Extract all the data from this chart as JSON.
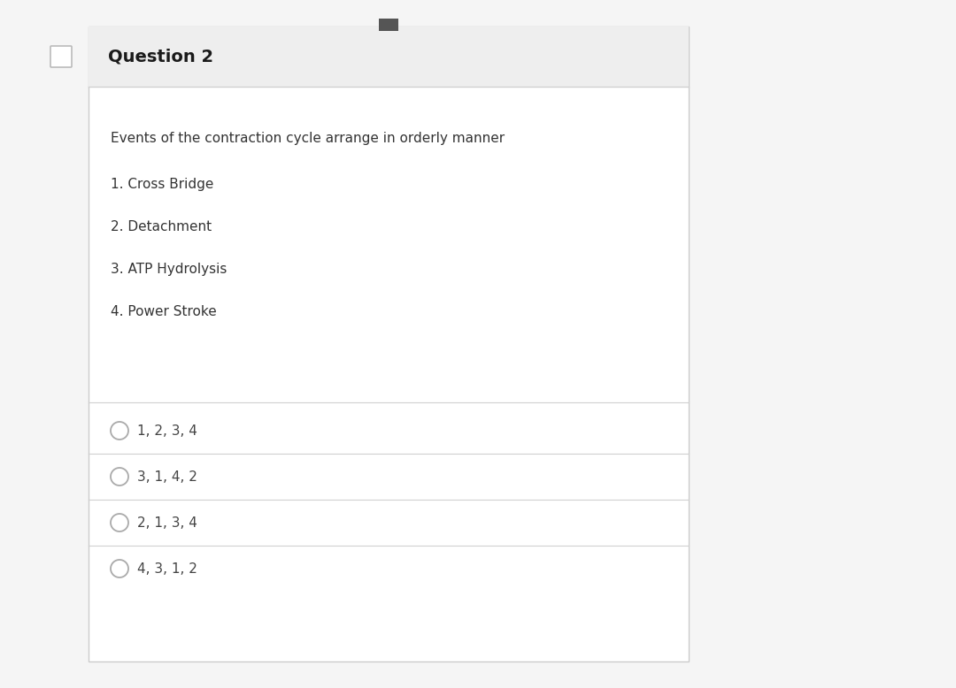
{
  "title": "Question 2",
  "question_text": "Events of the contraction cycle arrange in orderly manner",
  "items": [
    "1. Cross Bridge",
    "2. Detachment",
    "3. ATP Hydrolysis",
    "4. Power Stroke"
  ],
  "options": [
    "1, 2, 3, 4",
    "3, 1, 4, 2",
    "2, 1, 3, 4",
    "4, 3, 1, 2"
  ],
  "bg_color": "#f5f5f5",
  "card_bg": "#ffffff",
  "header_bg": "#eeeeee",
  "header_text_color": "#1a1a1a",
  "body_text_color": "#333333",
  "option_text_color": "#444444",
  "divider_color": "#d0d0d0",
  "circle_edge_color": "#aaaaaa",
  "checkbox_edge_color": "#bbbbbb",
  "title_fontsize": 14,
  "question_fontsize": 11,
  "item_fontsize": 11,
  "option_fontsize": 11,
  "dark_rect_color": "#555555",
  "card_border_color": "#cccccc"
}
